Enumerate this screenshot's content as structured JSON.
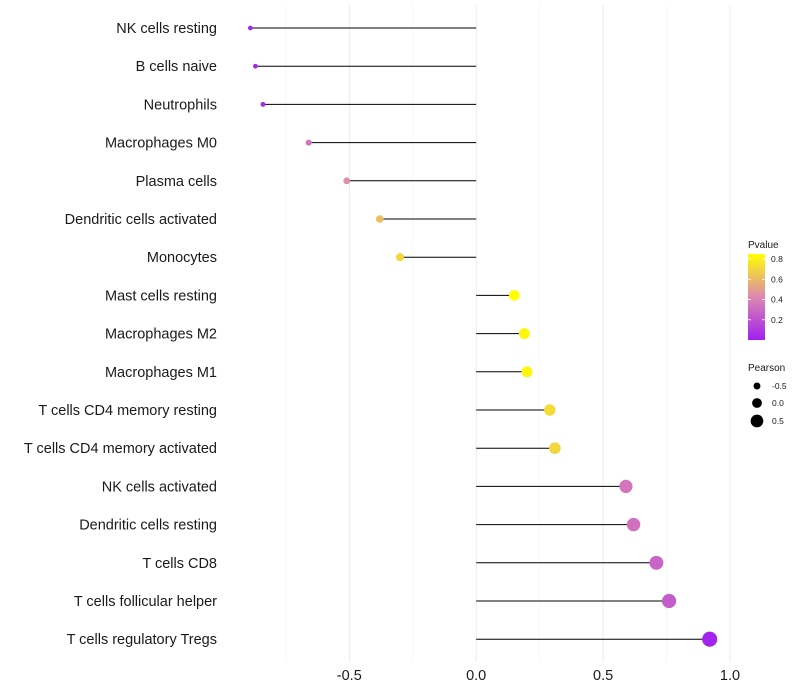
{
  "chart_data": {
    "type": "lollipop",
    "categories": [
      "NK cells resting",
      "B cells naive",
      "Neutrophils",
      "Macrophages M0",
      "Plasma cells",
      "Dendritic cells activated",
      "Monocytes",
      "Mast cells resting",
      "Macrophages M2",
      "Macrophages M1",
      "T cells CD4 memory resting",
      "T cells CD4 memory activated",
      "NK cells activated",
      "Dendritic cells resting",
      "T cells CD8",
      "T cells follicular helper",
      "T cells regulatory  Tregs"
    ],
    "values": [
      -0.89,
      -0.87,
      -0.84,
      -0.66,
      -0.51,
      -0.38,
      -0.3,
      0.15,
      0.19,
      0.2,
      0.29,
      0.31,
      0.59,
      0.62,
      0.71,
      0.76,
      0.92
    ],
    "pvalues": [
      0.02,
      0.03,
      0.05,
      0.35,
      0.45,
      0.62,
      0.7,
      0.85,
      0.82,
      0.82,
      0.72,
      0.7,
      0.35,
      0.33,
      0.28,
      0.25,
      0.02
    ],
    "xlim": [
      -0.97,
      1.0
    ],
    "xticks": [
      -0.5,
      0.0,
      0.5,
      1.0
    ],
    "xtick_labels": [
      "-0.5",
      "0.0",
      "0.5",
      "1.0"
    ],
    "grid": true,
    "legend_color": {
      "title": "Pvalue",
      "ticks": [
        0.2,
        0.4,
        0.6,
        0.8
      ],
      "tick_labels": [
        "0.2",
        "0.4",
        "0.6",
        "0.8"
      ],
      "range": [
        0.0,
        0.85
      ],
      "colors": {
        "low": "#a020f0",
        "mid": "#dd88b0",
        "high": "#ffff00"
      }
    },
    "legend_size": {
      "title": "Pearson",
      "values": [
        -0.5,
        0.0,
        0.5
      ],
      "labels": [
        "-0.5",
        "0.0",
        "0.5"
      ]
    },
    "legend_position": "right"
  }
}
